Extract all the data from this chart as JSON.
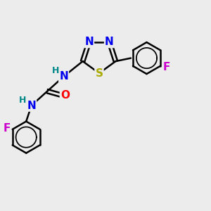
{
  "bg_color": "#ececec",
  "bond_color": "#000000",
  "bond_width": 1.8,
  "atom_colors": {
    "N": "#0000ee",
    "S": "#aaaa00",
    "O": "#ff0000",
    "F": "#cc00cc",
    "H": "#008888",
    "C": "#000000"
  },
  "font_size_atom": 11,
  "font_size_H": 9,
  "xlim": [
    0,
    10
  ],
  "ylim": [
    0,
    10
  ]
}
